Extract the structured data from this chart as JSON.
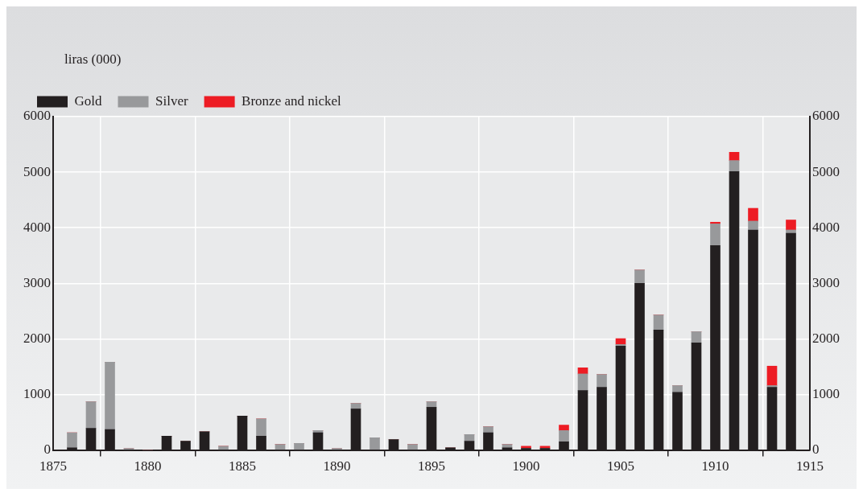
{
  "chart_data": {
    "type": "bar",
    "stacked": true,
    "ylabel": "liras (000)",
    "x": [
      1876,
      1877,
      1878,
      1879,
      1880,
      1881,
      1882,
      1883,
      1884,
      1885,
      1886,
      1887,
      1888,
      1889,
      1890,
      1891,
      1892,
      1893,
      1894,
      1895,
      1896,
      1897,
      1898,
      1899,
      1900,
      1901,
      1902,
      1903,
      1904,
      1905,
      1906,
      1907,
      1908,
      1909,
      1910,
      1911,
      1912,
      1913,
      1914
    ],
    "series": [
      {
        "name": "Gold",
        "color": "#231f20",
        "values": [
          40,
          390,
          370,
          0,
          0,
          250,
          160,
          330,
          0,
          610,
          250,
          0,
          0,
          310,
          0,
          740,
          0,
          190,
          0,
          770,
          40,
          160,
          310,
          40,
          30,
          30,
          150,
          1070,
          1130,
          1870,
          3000,
          2160,
          1040,
          1930,
          3680,
          5010,
          3960,
          1130,
          3900
        ]
      },
      {
        "name": "Silver",
        "color": "#98999b",
        "values": [
          270,
          480,
          1210,
          30,
          0,
          0,
          0,
          0,
          70,
          0,
          310,
          100,
          120,
          40,
          30,
          100,
          220,
          0,
          100,
          100,
          0,
          120,
          110,
          60,
          0,
          0,
          200,
          300,
          230,
          30,
          240,
          270,
          120,
          200,
          390,
          200,
          160,
          30,
          60
        ]
      },
      {
        "name": "Bronze and nickel",
        "color": "#ed1c24",
        "values": [
          0,
          0,
          0,
          0,
          0,
          0,
          0,
          0,
          0,
          0,
          0,
          0,
          0,
          0,
          0,
          0,
          0,
          0,
          0,
          0,
          0,
          0,
          0,
          0,
          40,
          40,
          100,
          110,
          0,
          105,
          0,
          0,
          0,
          0,
          30,
          150,
          230,
          350,
          180
        ]
      }
    ],
    "xlim": [
      1875,
      1915
    ],
    "xticks": [
      1875,
      1880,
      1885,
      1890,
      1895,
      1900,
      1905,
      1910,
      1915
    ],
    "ylim": [
      0,
      6000
    ],
    "yticks": [
      0,
      1000,
      2000,
      3000,
      4000,
      5000,
      6000
    ],
    "y2lim": [
      0,
      6000
    ],
    "y2ticks": [
      0,
      1000,
      2000,
      3000,
      4000,
      5000,
      6000
    ],
    "grid": true,
    "legend": "top left"
  }
}
